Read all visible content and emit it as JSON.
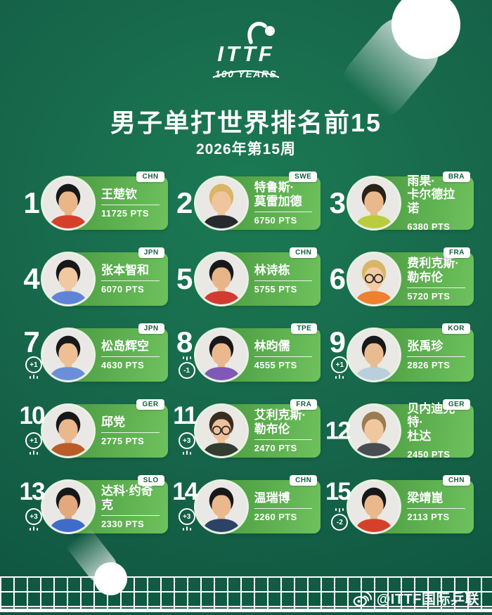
{
  "header": {
    "logo_org": "ITTF",
    "logo_years": "100 YEARS",
    "title": "男子单打世界排名前15",
    "subtitle": "2026年第15周"
  },
  "colors": {
    "background_dark": "#0b4634",
    "background_light": "#1b7a54",
    "card_gradient_start": "#4a9a40",
    "card_gradient_end": "#6ec25d",
    "flag_badge_bg": "#ffffff",
    "flag_badge_text": "#14603f",
    "text": "#ffffff"
  },
  "players": [
    {
      "rank": "1",
      "name": "王楚钦",
      "name_lines": [
        "王楚钦"
      ],
      "country": "CHN",
      "points": "11725 PTS",
      "change": null,
      "avatar": {
        "skin": "#eab687",
        "hair": "#17181a",
        "shirt": "#d6402b",
        "glasses": false
      }
    },
    {
      "rank": "2",
      "name": "特鲁斯·莫雷加德",
      "name_lines": [
        "特鲁斯·",
        "莫雷加德"
      ],
      "country": "SWE",
      "points": "6750 PTS",
      "change": null,
      "avatar": {
        "skin": "#f0c49c",
        "hair": "#d9b666",
        "shirt": "#26292e",
        "glasses": false
      }
    },
    {
      "rank": "3",
      "name": "雨果·卡尔德拉诺",
      "name_lines": [
        "雨果·",
        "卡尔德拉诺"
      ],
      "country": "BRA",
      "points": "6380 PTS",
      "change": null,
      "avatar": {
        "skin": "#e9b98c",
        "hair": "#2a2118",
        "shirt": "#b9cc3e",
        "glasses": false
      }
    },
    {
      "rank": "4",
      "name": "张本智和",
      "name_lines": [
        "张本智和"
      ],
      "country": "JPN",
      "points": "6070 PTS",
      "change": null,
      "avatar": {
        "skin": "#f0c9a0",
        "hair": "#17181a",
        "shirt": "#5f83d8",
        "glasses": false
      }
    },
    {
      "rank": "5",
      "name": "林诗栋",
      "name_lines": [
        "林诗栋"
      ],
      "country": "CHN",
      "points": "5755 PTS",
      "change": null,
      "avatar": {
        "skin": "#e8b589",
        "hair": "#17181a",
        "shirt": "#d23b30",
        "glasses": false
      }
    },
    {
      "rank": "6",
      "name": "费利克斯·勒布伦",
      "name_lines": [
        "费利克斯·",
        "勒布伦"
      ],
      "country": "FRA",
      "points": "5720 PTS",
      "change": null,
      "avatar": {
        "skin": "#f2cba4",
        "hair": "#d9b666",
        "shirt": "#ef8030",
        "glasses": true
      }
    },
    {
      "rank": "7",
      "name": "松岛辉空",
      "name_lines": [
        "松岛辉空"
      ],
      "country": "JPN",
      "points": "4630 PTS",
      "change": {
        "value": "+1",
        "direction": "up"
      },
      "avatar": {
        "skin": "#edbf93",
        "hair": "#17181a",
        "shirt": "#6a8fd8",
        "glasses": false
      }
    },
    {
      "rank": "8",
      "name": "林昀儒",
      "name_lines": [
        "林昀儒"
      ],
      "country": "TPE",
      "points": "4555 PTS",
      "change": {
        "value": "-1",
        "direction": "down"
      },
      "avatar": {
        "skin": "#eab88d",
        "hair": "#17181a",
        "shirt": "#8059b8",
        "glasses": false
      }
    },
    {
      "rank": "9",
      "name": "张禹珍",
      "name_lines": [
        "张禹珍"
      ],
      "country": "KOR",
      "points": "2826 PTS",
      "change": {
        "value": "+1",
        "direction": "up"
      },
      "avatar": {
        "skin": "#e9bb90",
        "hair": "#17181a",
        "shirt": "#b9cfdb",
        "glasses": false
      }
    },
    {
      "rank": "10",
      "name": "邱党",
      "name_lines": [
        "邱党"
      ],
      "country": "GER",
      "points": "2775 PTS",
      "change": {
        "value": "+1",
        "direction": "up"
      },
      "avatar": {
        "skin": "#eab88d",
        "hair": "#17181a",
        "shirt": "#b95c2a",
        "glasses": false
      }
    },
    {
      "rank": "11",
      "name": "艾利克斯·勒布伦",
      "name_lines": [
        "艾利克斯·",
        "勒布伦"
      ],
      "country": "FRA",
      "points": "2470 PTS",
      "change": {
        "value": "+3",
        "direction": "up"
      },
      "avatar": {
        "skin": "#efc19a",
        "hair": "#3a2c1e",
        "shirt": "#323c30",
        "glasses": true
      }
    },
    {
      "rank": "12",
      "name": "贝内迪克特·杜达",
      "name_lines": [
        "贝内迪克特·",
        "杜达"
      ],
      "country": "GER",
      "points": "2450 PTS",
      "change": null,
      "avatar": {
        "skin": "#f0c8a0",
        "hair": "#9a7b52",
        "shirt": "#474d52",
        "glasses": false
      }
    },
    {
      "rank": "13",
      "name": "达科·约奇克",
      "name_lines": [
        "达科·约奇克"
      ],
      "country": "SLO",
      "points": "2330 PTS",
      "change": {
        "value": "+3",
        "direction": "up"
      },
      "avatar": {
        "skin": "#e2a87e",
        "hair": "#17181a",
        "shirt": "#3f6cc8",
        "glasses": false
      }
    },
    {
      "rank": "14",
      "name": "温瑞博",
      "name_lines": [
        "温瑞博"
      ],
      "country": "CHN",
      "points": "2260 PTS",
      "change": {
        "value": "+3",
        "direction": "up"
      },
      "avatar": {
        "skin": "#eab88d",
        "hair": "#17181a",
        "shirt": "#2c4366",
        "glasses": false
      }
    },
    {
      "rank": "15",
      "name": "梁靖崑",
      "name_lines": [
        "梁靖崑"
      ],
      "country": "CHN",
      "points": "2113 PTS",
      "change": {
        "value": "-2",
        "direction": "down"
      },
      "avatar": {
        "skin": "#eab88d",
        "hair": "#17181a",
        "shirt": "#d6402b",
        "glasses": false
      }
    }
  ],
  "footer": {
    "watermark": "@ITTF国际乒联",
    "watermark_icon": "weibo-icon"
  }
}
